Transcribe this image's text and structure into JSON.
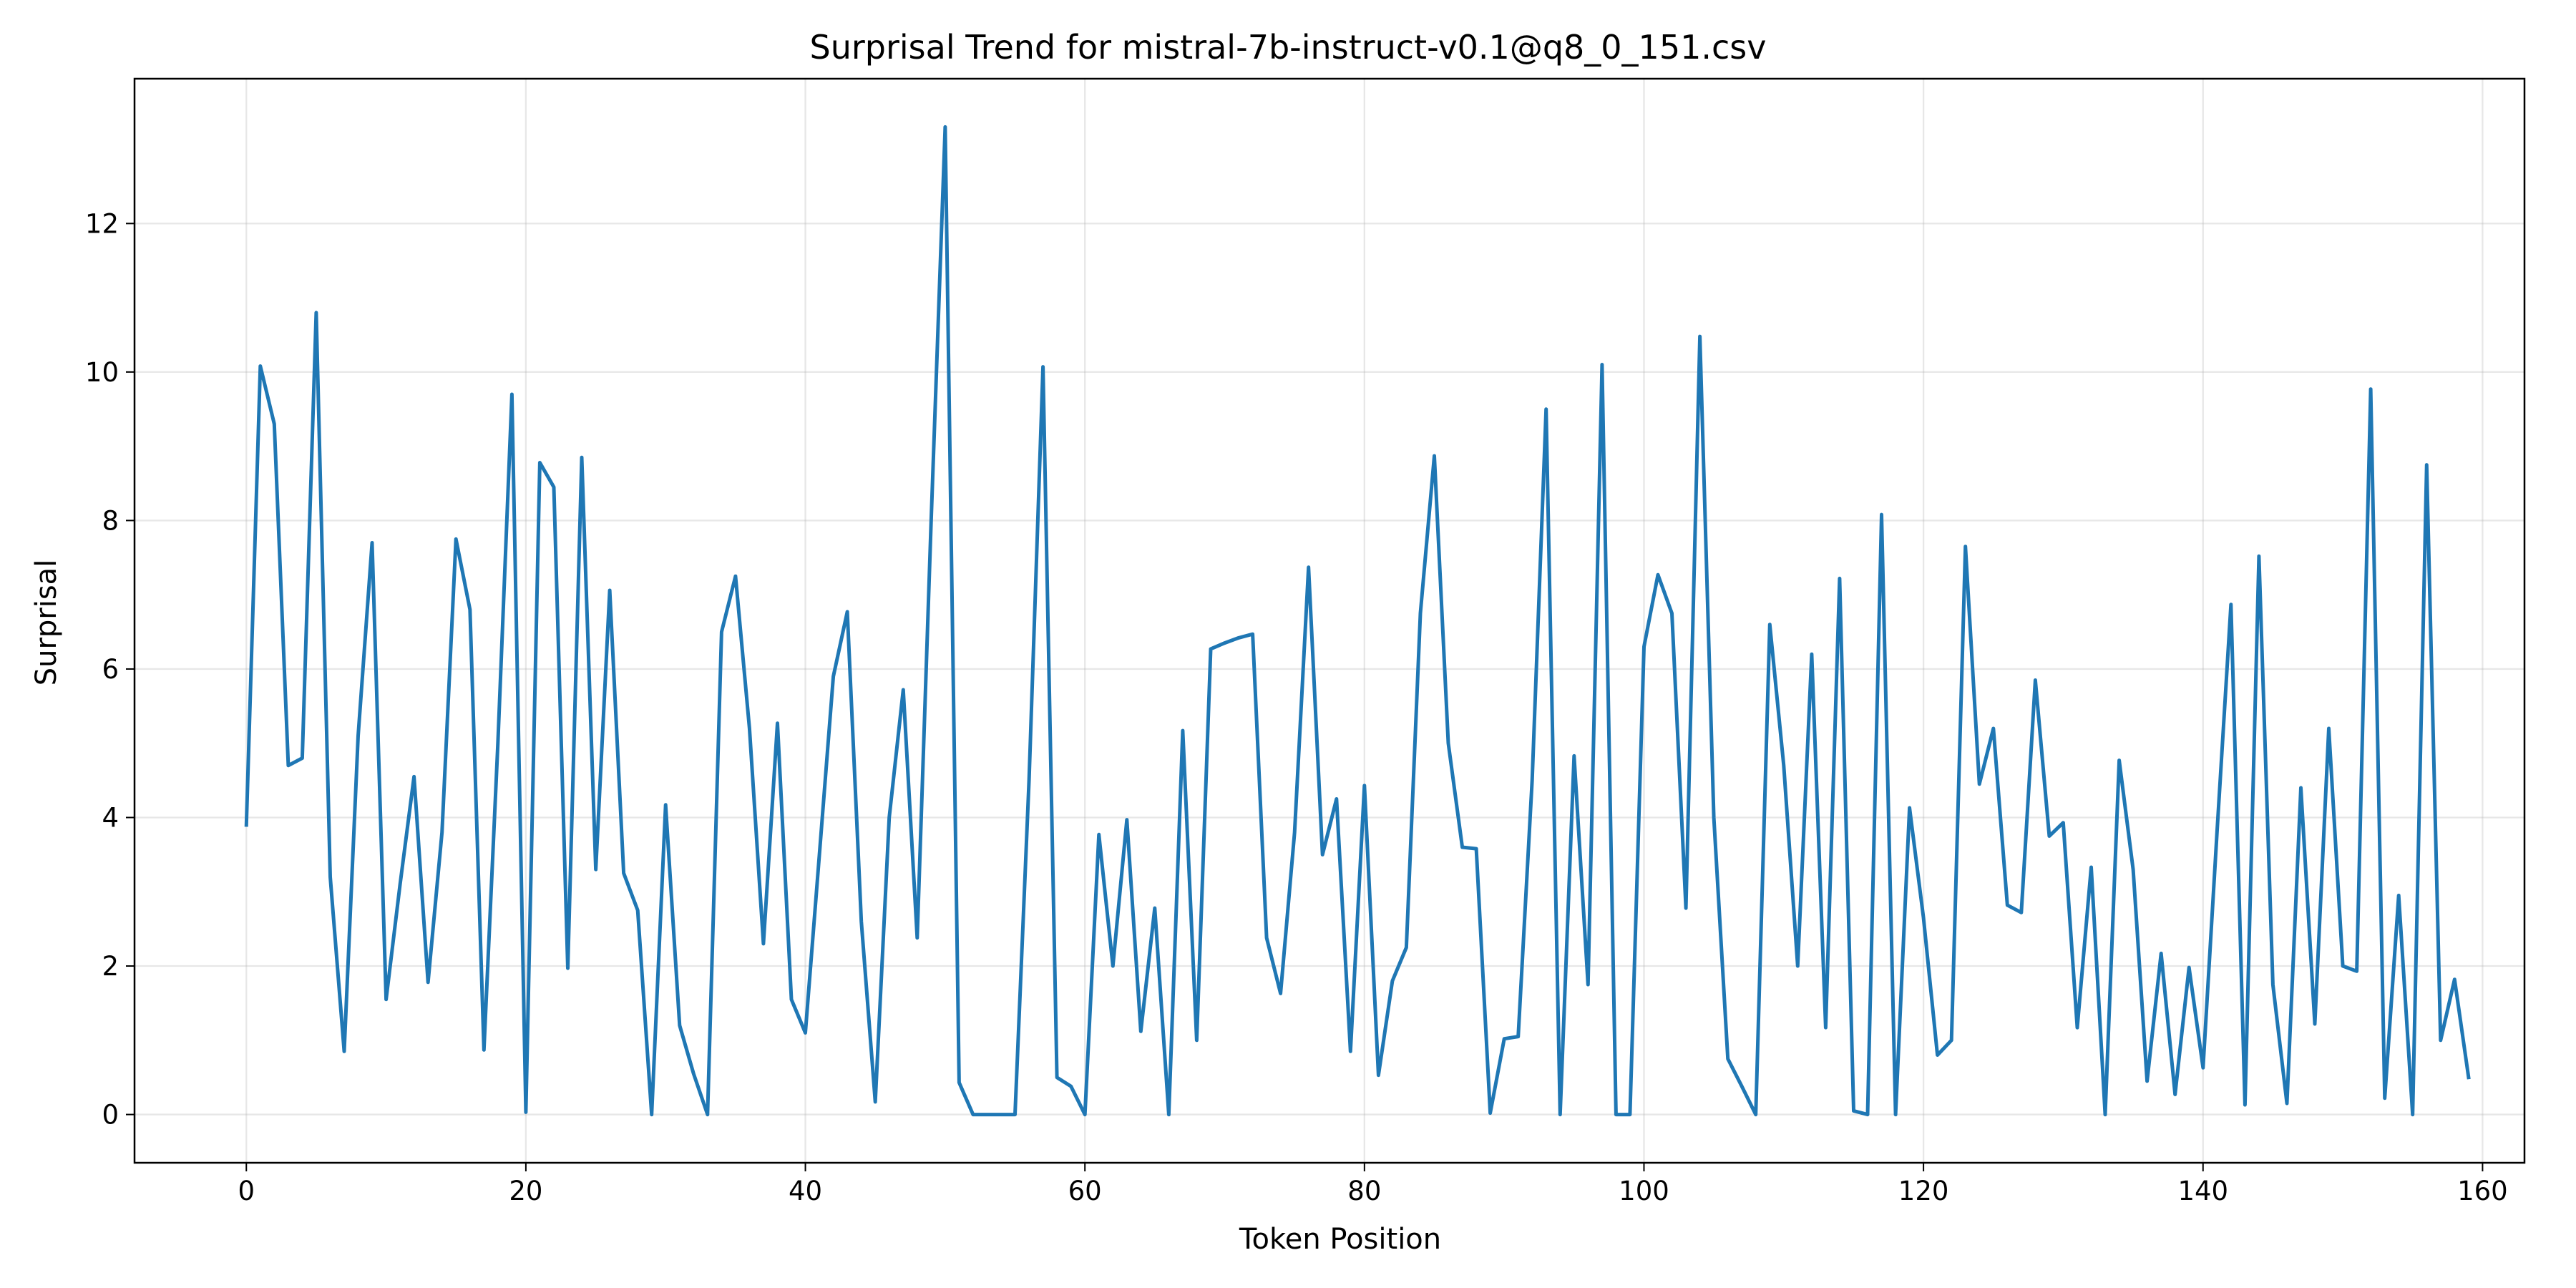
{
  "chart_data": {
    "type": "line",
    "title": "Surprisal Trend for mistral-7b-instruct-v0.1@q8_0_151.csv",
    "xlabel": "Token Position",
    "ylabel": "Surprisal",
    "xlim": [
      -8,
      163
    ],
    "ylim": [
      -0.65,
      13.95
    ],
    "xticks": [
      0,
      20,
      40,
      60,
      80,
      100,
      120,
      140,
      160
    ],
    "yticks": [
      0,
      2,
      4,
      6,
      8,
      10,
      12
    ],
    "grid": true,
    "line_color": "#1f77b4",
    "series": [
      {
        "x": [
          0,
          1,
          2,
          3,
          4,
          5,
          6,
          7,
          8,
          9,
          10,
          11,
          12,
          13,
          14,
          15,
          16,
          17,
          18,
          19,
          20,
          21,
          22,
          23,
          24,
          25,
          26,
          27,
          28,
          29,
          30,
          31,
          32,
          33,
          34,
          35,
          36,
          37,
          38,
          39,
          40,
          41,
          42,
          43,
          44,
          45,
          46,
          47,
          48,
          49,
          50,
          51,
          52,
          53,
          54,
          55,
          56,
          57,
          58,
          59,
          60,
          61,
          62,
          63,
          64,
          65,
          66,
          67,
          68,
          69,
          70,
          71,
          72,
          73,
          74,
          75,
          76,
          77,
          78,
          79,
          80,
          81,
          82,
          83,
          84,
          85,
          86,
          87,
          88,
          89,
          90,
          91,
          92,
          93,
          94,
          95,
          96,
          97,
          98,
          99,
          100,
          101,
          102,
          103,
          104,
          105,
          106,
          107,
          108,
          109,
          110,
          111,
          112,
          113,
          114,
          115,
          116,
          117,
          118,
          119,
          120,
          121,
          122,
          123,
          124,
          125,
          126,
          127,
          128,
          129,
          130,
          131,
          132,
          133,
          134,
          135,
          136,
          137,
          138,
          139,
          140,
          141,
          142,
          143,
          144,
          145,
          146,
          147,
          148,
          149,
          150,
          151,
          152,
          153,
          154,
          155,
          156,
          157,
          158,
          159
        ],
        "values": [
          3.9,
          10.08,
          9.3,
          4.7,
          4.8,
          10.8,
          3.2,
          0.85,
          5.1,
          7.7,
          1.55,
          3.1,
          4.55,
          1.78,
          3.8,
          7.75,
          6.8,
          0.87,
          5.0,
          9.7,
          0.03,
          8.78,
          8.45,
          1.97,
          8.85,
          3.3,
          7.06,
          3.25,
          2.75,
          0.0,
          4.17,
          1.2,
          0.55,
          0.0,
          6.5,
          7.25,
          5.2,
          2.3,
          5.27,
          1.55,
          1.1,
          3.5,
          5.9,
          6.77,
          2.6,
          0.17,
          4.0,
          5.72,
          2.38,
          8.0,
          13.3,
          0.43,
          0.0,
          0.0,
          0.0,
          0.0,
          4.5,
          10.07,
          0.5,
          0.38,
          0.0,
          3.77,
          2.0,
          3.97,
          1.12,
          2.78,
          0.0,
          5.17,
          1.0,
          6.27,
          6.35,
          6.42,
          6.47,
          2.38,
          1.63,
          3.8,
          7.37,
          3.5,
          4.25,
          0.85,
          4.43,
          0.53,
          1.8,
          2.25,
          6.75,
          8.87,
          5.0,
          3.6,
          3.58,
          0.02,
          1.02,
          1.05,
          4.5,
          9.5,
          0.0,
          4.83,
          1.75,
          10.1,
          0.0,
          0.0,
          6.3,
          7.27,
          6.75,
          2.78,
          10.48,
          4.0,
          0.75,
          0.38,
          0.0,
          6.6,
          4.7,
          2.0,
          6.2,
          1.17,
          7.22,
          0.05,
          0.0,
          8.08,
          0.0,
          4.13,
          2.65,
          0.8,
          1.0,
          7.65,
          4.45,
          5.2,
          2.82,
          2.72,
          5.85,
          3.75,
          3.93,
          1.17,
          3.33,
          0.0,
          4.77,
          3.3,
          0.45,
          2.17,
          0.27,
          1.98,
          0.63,
          3.8,
          6.87,
          0.13,
          7.52,
          1.75,
          0.15,
          4.4,
          1.22,
          5.2,
          2.0,
          1.93,
          9.77,
          0.22,
          2.95,
          0.0,
          8.75,
          1.0,
          1.82,
          0.5
        ]
      }
    ]
  }
}
